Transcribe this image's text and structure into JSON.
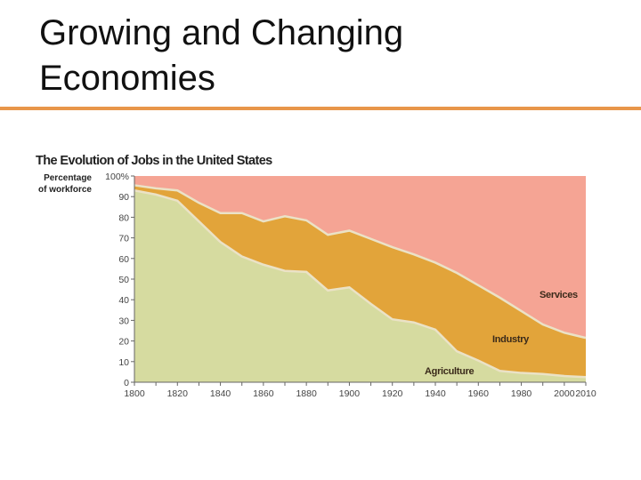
{
  "slide": {
    "title_line1": "Growing and Changing",
    "title_line2": "Economies"
  },
  "colors": {
    "rule": "#e8964a",
    "agriculture": "#d6dba0",
    "industry": "#e2a43a",
    "services": "#f5a494",
    "divider": "#ebe2c6"
  },
  "chart_data": {
    "type": "area",
    "stacked": true,
    "title": "The Evolution of Jobs in the United States",
    "ylabel": "Percentage of workforce",
    "ylabel_lines": [
      "Percentage",
      "of workforce"
    ],
    "ylim": [
      0,
      100
    ],
    "xlim": [
      1800,
      2010
    ],
    "y_ticks": [
      "0",
      "10",
      "20",
      "30",
      "40",
      "50",
      "60",
      "70",
      "80",
      "90",
      "100%"
    ],
    "x_ticks": [
      "1800",
      "1820",
      "1840",
      "1860",
      "1880",
      "1900",
      "1920",
      "1940",
      "1960",
      "1980",
      "2000",
      "2010"
    ],
    "x": [
      1800,
      1810,
      1820,
      1830,
      1840,
      1850,
      1860,
      1870,
      1880,
      1890,
      1900,
      1910,
      1920,
      1930,
      1940,
      1950,
      1960,
      1970,
      1980,
      1990,
      2000,
      2010
    ],
    "series": [
      {
        "name": "Agriculture",
        "values": [
          93,
          91,
          88,
          78,
          68,
          61,
          57,
          54,
          53.5,
          44.5,
          46,
          38,
          30.5,
          29,
          25.5,
          15,
          10.5,
          5.5,
          4.5,
          4,
          3,
          2.5
        ]
      },
      {
        "name": "Industry",
        "values": [
          2.5,
          3,
          5,
          9,
          14,
          21,
          21,
          26.5,
          25,
          27,
          27.5,
          31.5,
          35,
          33,
          32.5,
          38,
          36.5,
          35.5,
          30,
          24,
          21,
          19
        ]
      },
      {
        "name": "Services",
        "values": [
          4.5,
          6,
          7,
          13,
          18,
          18,
          22,
          19.5,
          21.5,
          28.5,
          26.5,
          30.5,
          34.5,
          38,
          42,
          47,
          53,
          59,
          65.5,
          72,
          76,
          78.5
        ]
      }
    ],
    "grid": false,
    "legend": "inline labels"
  }
}
